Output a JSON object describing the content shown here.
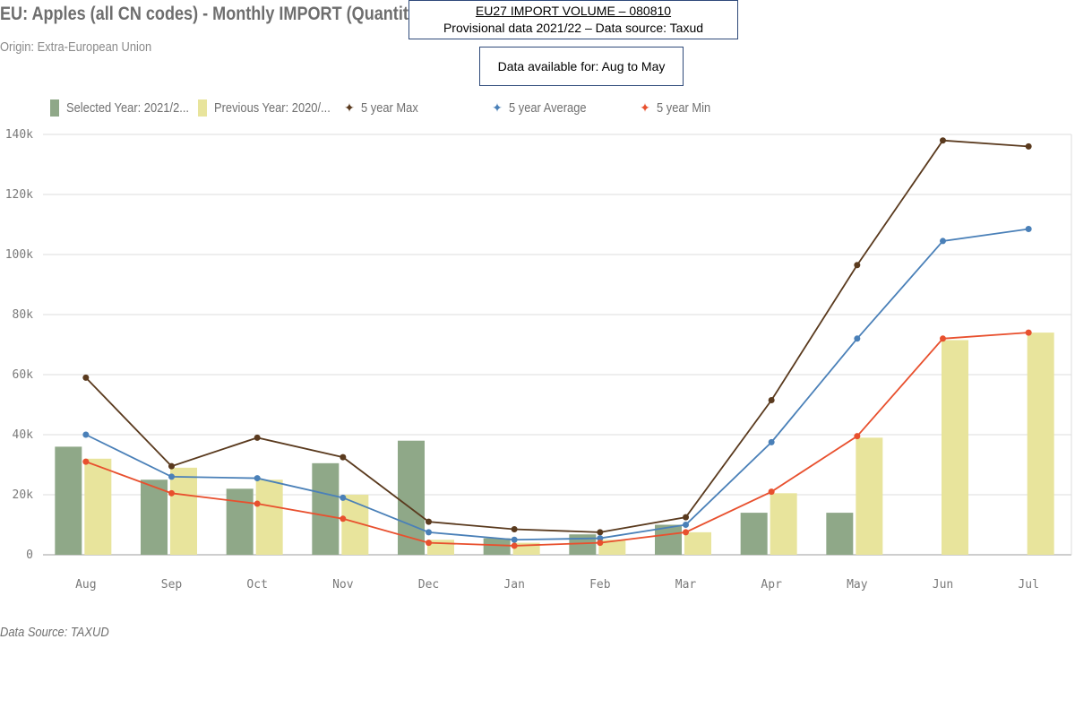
{
  "header": {
    "title": "EU: Apples (all CN codes) - Monthly IMPORT (Quantity in tonnes)",
    "subtitle": "Origin: Extra-European Union"
  },
  "info_box": {
    "line1": "EU27 IMPORT VOLUME  – 080810",
    "line2": "Provisional data 2021/22 – Data source: Taxud",
    "availability": "Data available for: Aug to May"
  },
  "footer": {
    "source": "Data Source: TAXUD"
  },
  "chart_data": {
    "type": "bar",
    "categories": [
      "Aug",
      "Sep",
      "Oct",
      "Nov",
      "Dec",
      "Jan",
      "Feb",
      "Mar",
      "Apr",
      "May",
      "Jun",
      "Jul"
    ],
    "ylim": [
      0,
      140000
    ],
    "y_ticks": [
      0,
      20000,
      40000,
      60000,
      80000,
      100000,
      120000,
      140000
    ],
    "y_tick_labels": [
      "0",
      "20k",
      "40k",
      "60k",
      "80k",
      "100k",
      "120k",
      "140k"
    ],
    "grid": true,
    "legend_position": "top",
    "series": [
      {
        "name": "Selected Year: 2021/2...",
        "kind": "bar",
        "color": "#8fa888",
        "values": [
          36000,
          25000,
          22000,
          30500,
          38000,
          5500,
          6800,
          10000,
          14000,
          14000,
          null,
          null
        ]
      },
      {
        "name": "Previous Year: 2020/...",
        "kind": "bar",
        "color": "#e8e49c",
        "values": [
          32000,
          29000,
          25000,
          20000,
          5000,
          4000,
          5000,
          7500,
          20500,
          39000,
          71500,
          74000
        ]
      },
      {
        "name": "5 year Max",
        "kind": "line",
        "color": "#5a3a1e",
        "values": [
          59000,
          29500,
          39000,
          32500,
          11000,
          8500,
          7500,
          12500,
          51500,
          96500,
          138000,
          136000
        ]
      },
      {
        "name": "5 year Average",
        "kind": "line",
        "color": "#4a80b8",
        "values": [
          40000,
          26000,
          25500,
          19000,
          7500,
          5000,
          5500,
          10000,
          37500,
          72000,
          104500,
          108500
        ]
      },
      {
        "name": "5 year Min",
        "kind": "line",
        "color": "#e8502e",
        "values": [
          31000,
          20500,
          17000,
          12000,
          4000,
          3000,
          4000,
          7500,
          21000,
          39500,
          72000,
          74000
        ]
      }
    ]
  }
}
